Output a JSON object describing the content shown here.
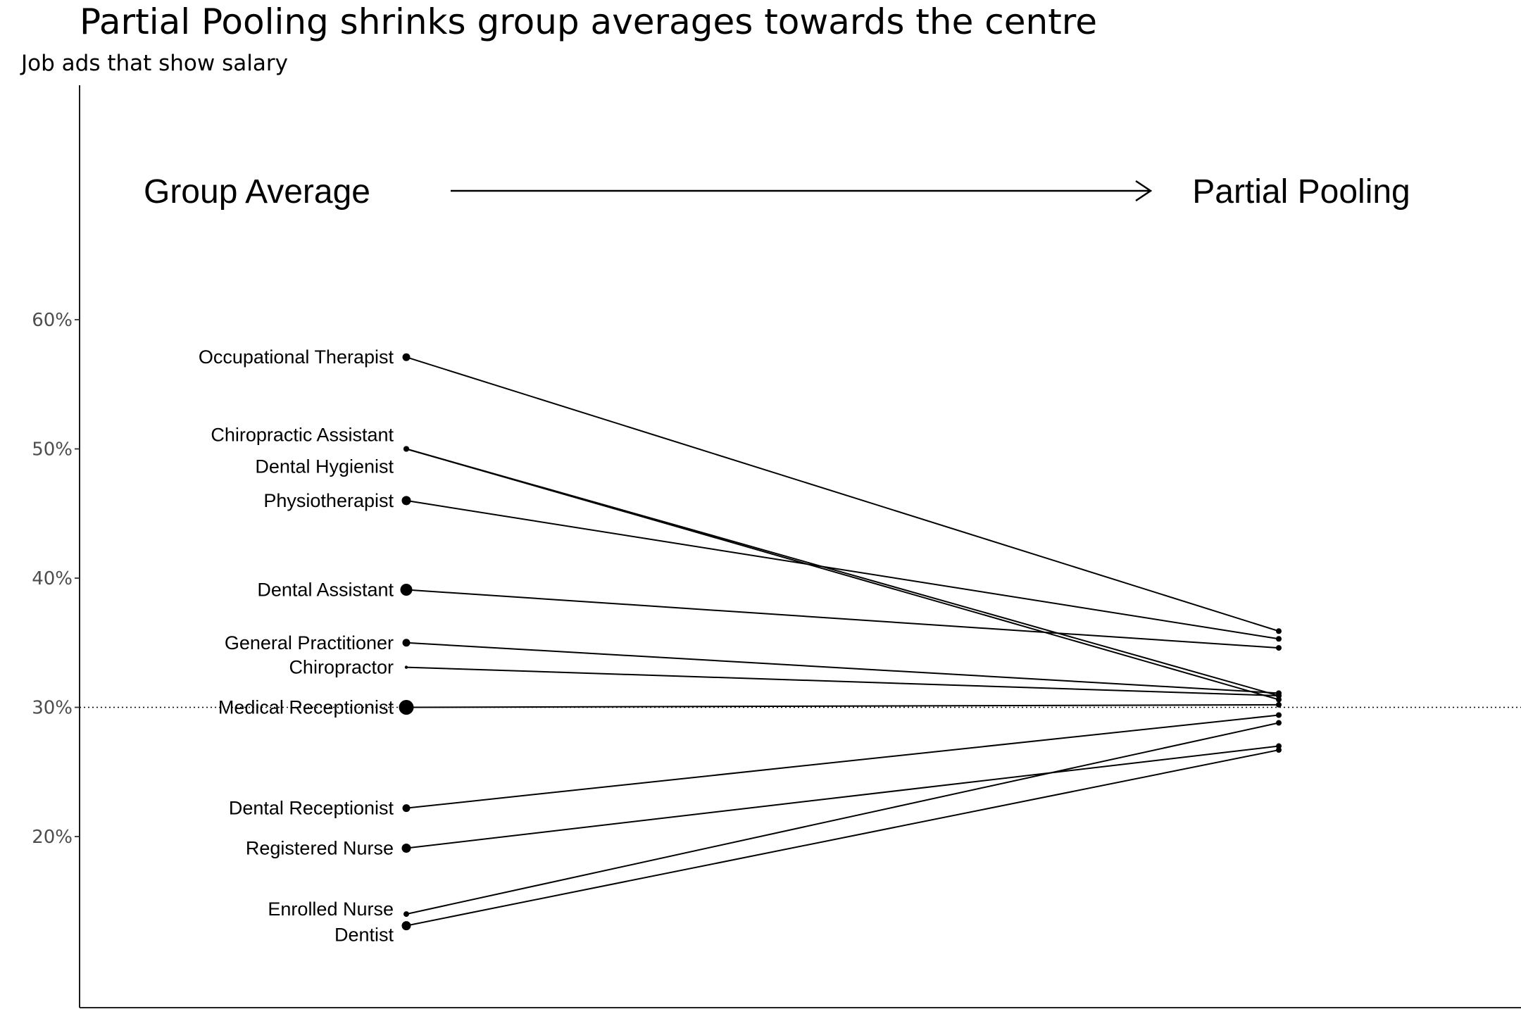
{
  "chart_data": {
    "type": "line",
    "title": "Partial Pooling shrinks group averages towards the centre",
    "subtitle": "Job ads that show salary",
    "left_header": "Group Average",
    "right_header": "Partial Pooling",
    "reference_line": 0.3,
    "y_ticks": [
      {
        "value": 0.2,
        "label": "20%"
      },
      {
        "value": 0.3,
        "label": "30%"
      },
      {
        "value": 0.4,
        "label": "40%"
      },
      {
        "value": 0.5,
        "label": "50%"
      },
      {
        "value": 0.6,
        "label": "60%"
      }
    ],
    "ylim": [
      0.055,
      0.76
    ],
    "point_size_note": "left point size reflects group size",
    "series": [
      {
        "name": "Occupational Therapist",
        "group_average": 0.571,
        "partial_pooling": 0.359,
        "size": 2
      },
      {
        "name": "Chiropractic Assistant",
        "group_average": 0.5,
        "partial_pooling": 0.309,
        "size": 1
      },
      {
        "name": "Dental Hygienist",
        "group_average": 0.5,
        "partial_pooling": 0.306,
        "size": 1
      },
      {
        "name": "Physiotherapist",
        "group_average": 0.46,
        "partial_pooling": 0.353,
        "size": 3
      },
      {
        "name": "Dental Assistant",
        "group_average": 0.391,
        "partial_pooling": 0.346,
        "size": 4
      },
      {
        "name": "General Practitioner",
        "group_average": 0.35,
        "partial_pooling": 0.311,
        "size": 2
      },
      {
        "name": "Chiropractor",
        "group_average": 0.331,
        "partial_pooling": 0.309,
        "size": 0
      },
      {
        "name": "Medical Receptionist",
        "group_average": 0.3,
        "partial_pooling": 0.302,
        "size": 5
      },
      {
        "name": "Dental Receptionist",
        "group_average": 0.222,
        "partial_pooling": 0.294,
        "size": 2
      },
      {
        "name": "Registered Nurse",
        "group_average": 0.191,
        "partial_pooling": 0.27,
        "size": 3
      },
      {
        "name": "Enrolled Nurse",
        "group_average": 0.14,
        "partial_pooling": 0.288,
        "size": 1
      },
      {
        "name": "Dentist",
        "group_average": 0.131,
        "partial_pooling": 0.267,
        "size": 3
      }
    ]
  }
}
